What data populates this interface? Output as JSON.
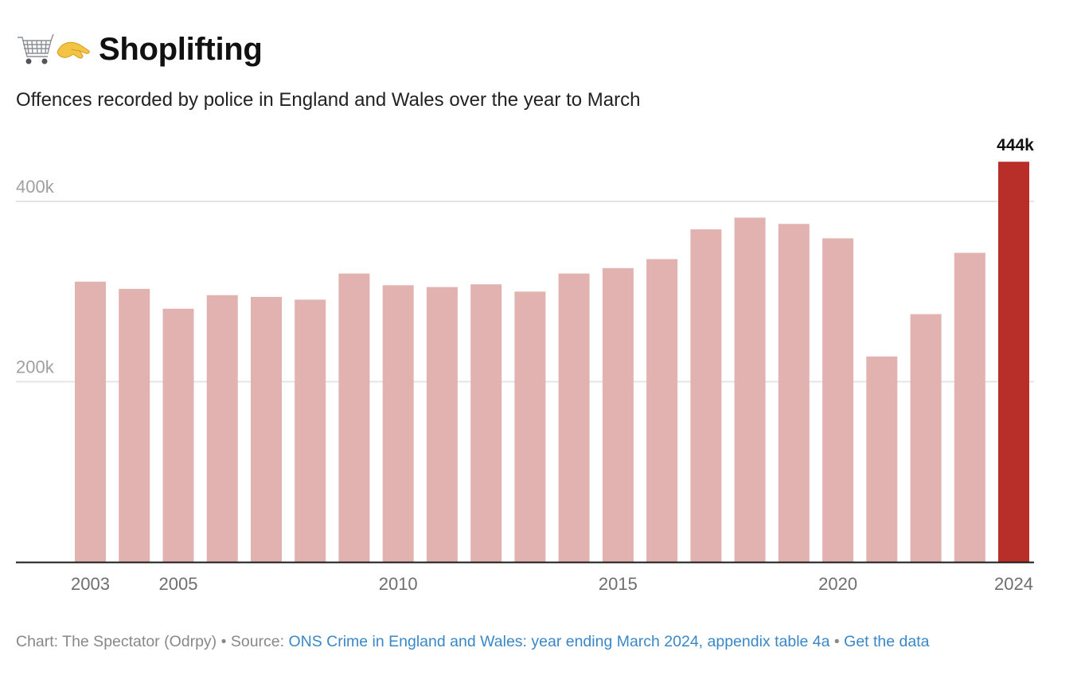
{
  "header": {
    "title": "Shoplifting",
    "title_icons": [
      "shopping-cart-icon",
      "pinching-hand-icon"
    ],
    "subtitle": "Offences recorded by police in England and Wales over the year to March"
  },
  "footer": {
    "credit": "Chart: The Spectator (Odrpy)",
    "separator": "•",
    "source_label": "Source:",
    "source_link": "ONS Crime in England and Wales: year ending March 2024, appendix table 4a",
    "get_data_link": "Get the data"
  },
  "colors": {
    "bar": "#e1b2b0",
    "highlight": "#b72f28",
    "gridline": "#e4e4e4",
    "axis": "#1a1a1a",
    "tick_label": "#6f6f6f",
    "y_label": "#a0a0a0",
    "link": "#3a87c8"
  },
  "chart_data": {
    "type": "bar",
    "title": "Shoplifting",
    "subtitle": "Offences recorded by police in England and Wales over the year to March",
    "xlabel": "",
    "ylabel": "",
    "categories": [
      "2003",
      "2004",
      "2005",
      "2006",
      "2007",
      "2008",
      "2009",
      "2010",
      "2011",
      "2012",
      "2013",
      "2014",
      "2015",
      "2016",
      "2017",
      "2018",
      "2019",
      "2020",
      "2021",
      "2022",
      "2023",
      "2024"
    ],
    "values": [
      311000,
      303000,
      281000,
      296000,
      294000,
      291000,
      320000,
      307000,
      305000,
      308000,
      300000,
      320000,
      326000,
      336000,
      369000,
      382000,
      375000,
      359000,
      228000,
      275000,
      343000,
      444000
    ],
    "highlight_index": 21,
    "highlight_label": "444k",
    "ylim": [
      0,
      444000
    ],
    "y_ticks": [
      {
        "value": 200000,
        "label": "200k"
      },
      {
        "value": 400000,
        "label": "400k"
      }
    ],
    "x_tick_labels": [
      "2003",
      "2005",
      "2010",
      "2015",
      "2020",
      "2024"
    ],
    "grid": true,
    "legend": "none"
  }
}
